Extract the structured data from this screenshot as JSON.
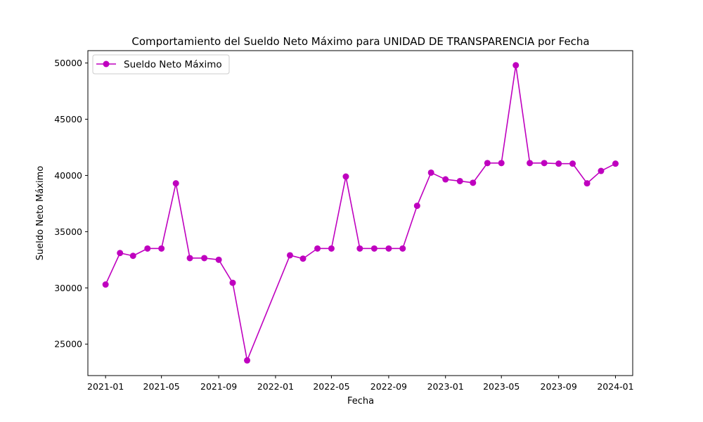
{
  "chart_data": {
    "type": "line",
    "title": "Comportamiento del Sueldo Neto Máximo para UNIDAD DE TRANSPARENCIA por Fecha",
    "xlabel": "Fecha",
    "ylabel": "Sueldo Neto Máximo",
    "x_ticks": [
      "2021-01",
      "2021-05",
      "2021-09",
      "2022-01",
      "2022-05",
      "2022-09",
      "2023-01",
      "2023-05",
      "2023-09",
      "2024-01"
    ],
    "y_ticks": [
      25000,
      30000,
      35000,
      40000,
      45000,
      50000
    ],
    "xlim": [
      "2020-11-24",
      "2024-02-07"
    ],
    "ylim": [
      22200,
      51100
    ],
    "grid": false,
    "legend_position": "top-left",
    "color": "#bf00bf",
    "series": [
      {
        "name": "Sueldo Neto Máximo",
        "points": [
          {
            "x": "2021-01",
            "y": 30300
          },
          {
            "x": "2021-02",
            "y": 33100
          },
          {
            "x": "2021-03",
            "y": 32850
          },
          {
            "x": "2021-04",
            "y": 33500
          },
          {
            "x": "2021-05",
            "y": 33500
          },
          {
            "x": "2021-06",
            "y": 39300
          },
          {
            "x": "2021-07",
            "y": 32650
          },
          {
            "x": "2021-08",
            "y": 32650
          },
          {
            "x": "2021-09",
            "y": 32500
          },
          {
            "x": "2021-10",
            "y": 30450
          },
          {
            "x": "2021-11",
            "y": 23550
          },
          {
            "x": "2022-02",
            "y": 32900
          },
          {
            "x": "2022-03",
            "y": 32600
          },
          {
            "x": "2022-04",
            "y": 33500
          },
          {
            "x": "2022-05",
            "y": 33500
          },
          {
            "x": "2022-06",
            "y": 39900
          },
          {
            "x": "2022-07",
            "y": 33500
          },
          {
            "x": "2022-08",
            "y": 33500
          },
          {
            "x": "2022-09",
            "y": 33500
          },
          {
            "x": "2022-10",
            "y": 33500
          },
          {
            "x": "2022-11",
            "y": 37300
          },
          {
            "x": "2022-12",
            "y": 40250
          },
          {
            "x": "2023-01",
            "y": 39650
          },
          {
            "x": "2023-02",
            "y": 39500
          },
          {
            "x": "2023-03",
            "y": 39350
          },
          {
            "x": "2023-04",
            "y": 41100
          },
          {
            "x": "2023-05",
            "y": 41100
          },
          {
            "x": "2023-06",
            "y": 49800
          },
          {
            "x": "2023-07",
            "y": 41100
          },
          {
            "x": "2023-08",
            "y": 41100
          },
          {
            "x": "2023-09",
            "y": 41050
          },
          {
            "x": "2023-10",
            "y": 41050
          },
          {
            "x": "2023-11",
            "y": 39300
          },
          {
            "x": "2023-12",
            "y": 40400
          },
          {
            "x": "2024-01",
            "y": 41050
          }
        ]
      }
    ]
  }
}
